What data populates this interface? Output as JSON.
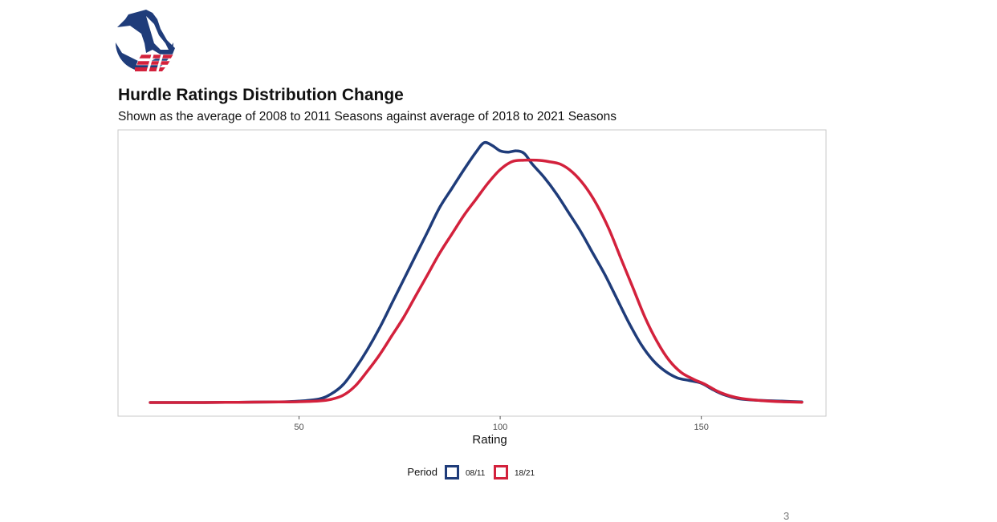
{
  "slide": {
    "title": "Hurdle Ratings Distribution Change",
    "subtitle": "Shown as the average of 2008 to 2011 Seasons against average of 2018 to 2021 Seasons",
    "page_number": "3"
  },
  "logo": {
    "icon": "horse-head-logo-icon",
    "colors": {
      "navy": "#1f3c7a",
      "red": "#d3213c"
    }
  },
  "chart_data": {
    "type": "line",
    "title": "Hurdle Ratings Distribution Change",
    "subtitle": "Shown as the average of 2008 to 2011 Seasons against average of 2018 to 2021 Seasons",
    "xlabel": "Rating",
    "ylabel": "",
    "xlim": [
      5,
      181
    ],
    "ylim": [
      0,
      1.05
    ],
    "x_ticks": [
      50,
      100,
      150
    ],
    "y_ticks": [],
    "grid": false,
    "legend": {
      "title": "Period",
      "position": "bottom"
    },
    "series": [
      {
        "name": "08/11",
        "color": "#1f3c7a",
        "x": [
          13,
          25,
          35,
          45,
          50,
          55,
          58,
          61,
          64,
          67,
          70,
          73,
          76,
          79,
          82,
          85,
          88,
          91,
          94,
          96,
          98,
          100,
          102,
          104,
          106,
          108,
          111,
          114,
          117,
          120,
          123,
          126,
          129,
          132,
          135,
          138,
          141,
          144,
          147,
          150,
          153,
          156,
          159,
          162,
          166,
          170,
          175
        ],
        "y": [
          0.003,
          0.003,
          0.004,
          0.005,
          0.008,
          0.016,
          0.035,
          0.07,
          0.13,
          0.2,
          0.28,
          0.37,
          0.46,
          0.55,
          0.64,
          0.73,
          0.8,
          0.87,
          0.935,
          0.97,
          0.96,
          0.94,
          0.935,
          0.94,
          0.93,
          0.89,
          0.84,
          0.78,
          0.71,
          0.64,
          0.56,
          0.48,
          0.39,
          0.3,
          0.22,
          0.16,
          0.12,
          0.095,
          0.085,
          0.075,
          0.05,
          0.03,
          0.018,
          0.013,
          0.01,
          0.008,
          0.005
        ]
      },
      {
        "name": "18/21",
        "color": "#d3213c",
        "x": [
          13,
          25,
          35,
          45,
          50,
          55,
          58,
          61,
          64,
          67,
          70,
          73,
          76,
          79,
          82,
          85,
          88,
          91,
          94,
          97,
          100,
          103,
          106,
          109,
          112,
          115,
          118,
          121,
          124,
          127,
          130,
          133,
          136,
          139,
          142,
          145,
          148,
          151,
          154,
          157,
          160,
          165,
          170,
          175
        ],
        "y": [
          0.003,
          0.003,
          0.004,
          0.005,
          0.006,
          0.009,
          0.015,
          0.03,
          0.065,
          0.12,
          0.18,
          0.25,
          0.32,
          0.4,
          0.48,
          0.56,
          0.63,
          0.7,
          0.76,
          0.82,
          0.87,
          0.9,
          0.905,
          0.905,
          0.9,
          0.89,
          0.86,
          0.81,
          0.74,
          0.65,
          0.54,
          0.43,
          0.32,
          0.23,
          0.16,
          0.115,
          0.09,
          0.07,
          0.045,
          0.028,
          0.018,
          0.01,
          0.006,
          0.004
        ]
      }
    ]
  }
}
